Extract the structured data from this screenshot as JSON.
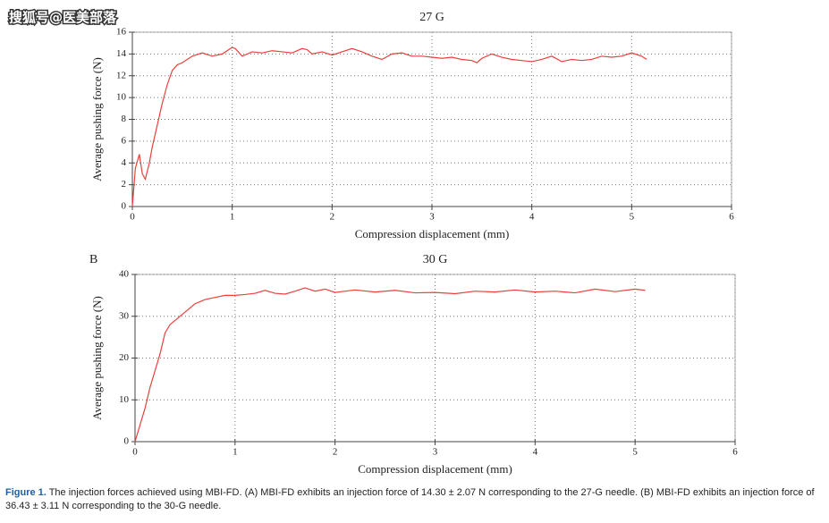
{
  "watermark": "搜狐号@医美部落",
  "chart_data": [
    {
      "type": "line",
      "title": "27 G",
      "xlabel": "Compression displacement (mm)",
      "ylabel": "Average pushing force (N)",
      "color": "#e8413c",
      "grid": true,
      "xlim": [
        0,
        6
      ],
      "xticks": [
        0,
        1,
        2,
        3,
        4,
        5,
        6
      ],
      "ylim": [
        0,
        16
      ],
      "yticks": [
        0,
        2,
        4,
        6,
        8,
        10,
        12,
        14,
        16
      ],
      "x": [
        0,
        0.03,
        0.07,
        0.1,
        0.13,
        0.17,
        0.2,
        0.25,
        0.3,
        0.35,
        0.4,
        0.45,
        0.5,
        0.6,
        0.7,
        0.8,
        0.9,
        1.0,
        1.03,
        1.1,
        1.2,
        1.3,
        1.4,
        1.5,
        1.6,
        1.7,
        1.75,
        1.8,
        1.9,
        2.0,
        2.1,
        2.2,
        2.3,
        2.4,
        2.5,
        2.6,
        2.7,
        2.8,
        2.9,
        3.0,
        3.1,
        3.2,
        3.3,
        3.4,
        3.45,
        3.5,
        3.6,
        3.7,
        3.8,
        3.9,
        4.0,
        4.1,
        4.2,
        4.3,
        4.4,
        4.5,
        4.6,
        4.7,
        4.8,
        4.9,
        5.0,
        5.1,
        5.15
      ],
      "values": [
        0,
        3.5,
        4.8,
        3.0,
        2.5,
        4,
        5.5,
        7.5,
        9.5,
        11.2,
        12.5,
        13,
        13.2,
        13.8,
        14.1,
        13.8,
        14.0,
        14.6,
        14.5,
        13.8,
        14.2,
        14.1,
        14.3,
        14.2,
        14.1,
        14.5,
        14.4,
        14.0,
        14.2,
        13.9,
        14.2,
        14.5,
        14.2,
        13.8,
        13.5,
        14.0,
        14.1,
        13.8,
        13.8,
        13.7,
        13.6,
        13.7,
        13.5,
        13.4,
        13.2,
        13.6,
        14.0,
        13.7,
        13.5,
        13.4,
        13.3,
        13.5,
        13.8,
        13.3,
        13.5,
        13.4,
        13.5,
        13.8,
        13.7,
        13.8,
        14.1,
        13.8,
        13.5
      ]
    },
    {
      "type": "line",
      "label": "B",
      "title": "30 G",
      "xlabel": "Compression displacement (mm)",
      "ylabel": "Average pushing force (N)",
      "color": "#e8413c",
      "grid": true,
      "xlim": [
        0,
        6
      ],
      "xticks": [
        0,
        1,
        2,
        3,
        4,
        5,
        6
      ],
      "ylim": [
        0,
        40
      ],
      "yticks": [
        0,
        10,
        20,
        30,
        40
      ],
      "x": [
        0,
        0.05,
        0.1,
        0.15,
        0.2,
        0.25,
        0.3,
        0.35,
        0.4,
        0.5,
        0.6,
        0.7,
        0.8,
        0.9,
        1.0,
        1.1,
        1.2,
        1.3,
        1.4,
        1.5,
        1.6,
        1.7,
        1.8,
        1.9,
        2.0,
        2.2,
        2.4,
        2.6,
        2.8,
        3.0,
        3.2,
        3.4,
        3.6,
        3.8,
        4.0,
        4.2,
        4.4,
        4.6,
        4.8,
        5.0,
        5.1
      ],
      "values": [
        0,
        4,
        8,
        13,
        17,
        21,
        26,
        28,
        29,
        31,
        33,
        34,
        34.5,
        35,
        35,
        35.2,
        35.5,
        36.2,
        35.5,
        35.3,
        36,
        36.8,
        36,
        36.5,
        35.7,
        36.3,
        35.8,
        36.2,
        35.6,
        35.7,
        35.4,
        36,
        35.8,
        36.3,
        35.8,
        36,
        35.6,
        36.5,
        35.9,
        36.5,
        36.2
      ]
    }
  ],
  "caption": {
    "label": "Figure 1.",
    "text": "The injection forces achieved using MBI-FD. (A) MBI-FD exhibits an injection force of 14.30 ± 2.07 N corresponding to the 27-G needle. (B) MBI-FD exhibits an injection force of 36.43 ± 3.11 N corresponding to the 30-G needle."
  }
}
